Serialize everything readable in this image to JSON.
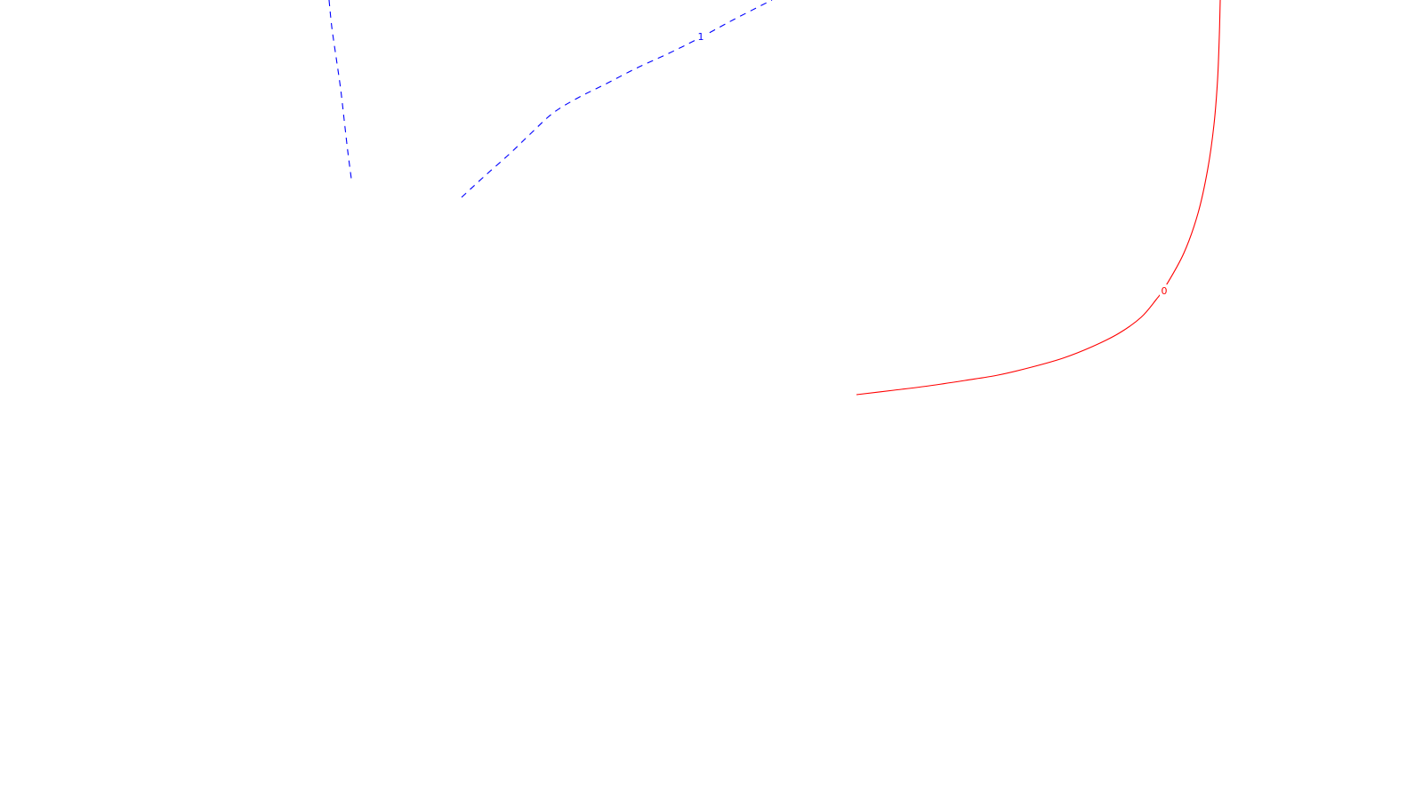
{
  "chart_data": {
    "type": "contour",
    "title": "",
    "xlabel": "",
    "ylabel": "",
    "grid": false,
    "legend": "none",
    "contours": [
      {
        "level_label": "1",
        "color": "#0000ff",
        "dashed": true,
        "segments": [
          [
            [
              370,
              0
            ],
            [
              373,
              30
            ],
            [
              378,
              65
            ],
            [
              383,
              100
            ],
            [
              387,
              135
            ],
            [
              391,
              170
            ],
            [
              395,
              201
            ]
          ],
          [
            [
              519,
              222
            ],
            [
              545,
              198
            ],
            [
              572,
              174
            ],
            [
              597,
              150
            ],
            [
              622,
              127
            ],
            [
              650,
              110
            ],
            [
              680,
              95
            ],
            [
              715,
              77
            ],
            [
              752,
              60
            ],
            [
              788,
              42
            ],
            [
              825,
              22
            ],
            [
              868,
              0
            ]
          ]
        ],
        "label_at": [
          788,
          41
        ]
      },
      {
        "level_label": "0",
        "color": "#ff0000",
        "dashed": false,
        "segments": [
          [
            [
              1372,
              0
            ],
            [
              1371,
              40
            ],
            [
              1369,
              90
            ],
            [
              1365,
              140
            ],
            [
              1358,
              190
            ],
            [
              1347,
              240
            ],
            [
              1331,
              285
            ],
            [
              1310,
              323
            ],
            [
              1300,
              337
            ],
            [
              1283,
              357
            ],
            [
              1258,
              375
            ],
            [
              1228,
              390
            ],
            [
              1195,
              403
            ],
            [
              1160,
              413
            ],
            [
              1122,
              422
            ],
            [
              1085,
              428
            ],
            [
              1045,
              434
            ],
            [
              1005,
              439
            ],
            [
              963,
              444
            ]
          ]
        ],
        "label_at": [
          1309,
          327
        ]
      }
    ]
  }
}
